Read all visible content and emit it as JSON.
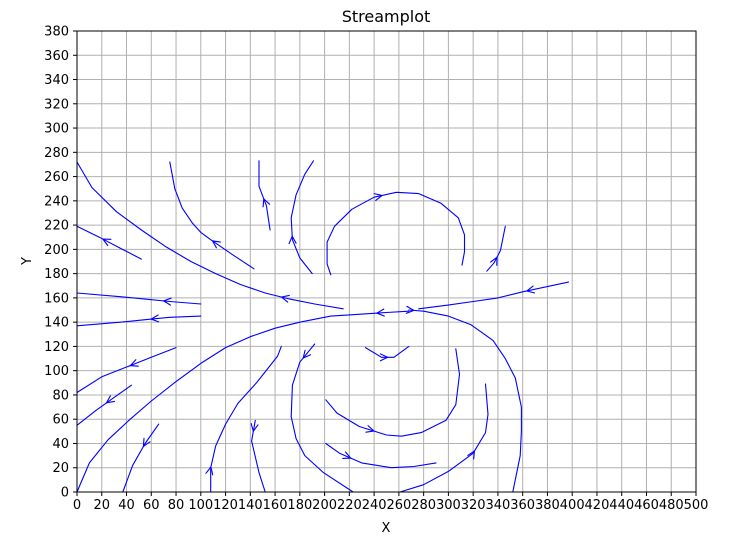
{
  "chart_data": {
    "type": "streamplot",
    "title": "Streamplot",
    "xlabel": "X",
    "ylabel": "Y",
    "xlim": [
      0,
      500
    ],
    "ylim": [
      0,
      380
    ],
    "xticks": [
      0,
      20,
      40,
      60,
      80,
      100,
      120,
      140,
      160,
      180,
      200,
      220,
      240,
      260,
      280,
      300,
      320,
      340,
      360,
      380,
      400,
      420,
      440,
      460,
      480,
      500
    ],
    "yticks": [
      0,
      20,
      40,
      60,
      80,
      100,
      120,
      140,
      160,
      180,
      200,
      220,
      240,
      260,
      280,
      300,
      320,
      340,
      360,
      380
    ],
    "grid": true,
    "line_color": "#0000ff",
    "streamlines": [
      {
        "points": [
          [
            52,
            192
          ],
          [
            35,
            201
          ],
          [
            18,
            210
          ],
          [
            0,
            219
          ]
        ],
        "arrow": 0.6
      },
      {
        "points": [
          [
            143,
            184
          ],
          [
            125,
            196
          ],
          [
            108,
            208
          ],
          [
            100,
            214
          ],
          [
            93,
            222
          ],
          [
            85,
            234
          ],
          [
            79,
            250
          ],
          [
            75,
            272
          ]
        ],
        "arrow": 0.35
      },
      {
        "points": [
          [
            215,
            151
          ],
          [
            192,
            155
          ],
          [
            172,
            159
          ],
          [
            152,
            164
          ],
          [
            132,
            171
          ],
          [
            112,
            180
          ],
          [
            92,
            190
          ],
          [
            72,
            202
          ],
          [
            52,
            216
          ],
          [
            32,
            231
          ],
          [
            12,
            251
          ],
          [
            0,
            272
          ]
        ],
        "arrow": 0.2
      },
      {
        "points": [
          [
            100,
            155
          ],
          [
            75,
            157
          ],
          [
            55,
            159
          ],
          [
            35,
            161
          ],
          [
            0,
            164
          ]
        ],
        "arrow": 0.3
      },
      {
        "points": [
          [
            100,
            145
          ],
          [
            75,
            144
          ],
          [
            55,
            142
          ],
          [
            35,
            140
          ],
          [
            0,
            137
          ]
        ],
        "arrow": 0.4
      },
      {
        "points": [
          [
            80,
            119
          ],
          [
            60,
            111
          ],
          [
            45,
            105
          ],
          [
            20,
            95
          ],
          [
            0,
            82
          ]
        ],
        "arrow": 0.45
      },
      {
        "points": [
          [
            44,
            88
          ],
          [
            30,
            78
          ],
          [
            15,
            67
          ],
          [
            0,
            55
          ]
        ],
        "arrow": 0.45
      },
      {
        "points": [
          [
            66,
            56
          ],
          [
            55,
            40
          ],
          [
            45,
            22
          ],
          [
            37,
            0
          ]
        ],
        "arrow": 0.35
      },
      {
        "points": [
          [
            156,
            216
          ],
          [
            153,
            236
          ],
          [
            147,
            252
          ],
          [
            147,
            273
          ]
        ],
        "arrow": 0.45
      },
      {
        "points": [
          [
            190,
            180
          ],
          [
            180,
            193
          ],
          [
            174,
            208
          ],
          [
            173,
            226
          ],
          [
            177,
            245
          ],
          [
            184,
            262
          ],
          [
            191,
            273
          ]
        ],
        "arrow": 0.35
      },
      {
        "points": [
          [
            331,
            182
          ],
          [
            337,
            189
          ],
          [
            342,
            199
          ],
          [
            346,
            219
          ]
        ],
        "arrow": 0.35
      },
      {
        "points": [
          [
            205,
            179
          ],
          [
            202,
            188
          ],
          [
            202,
            206
          ],
          [
            208,
            219
          ],
          [
            222,
            233
          ],
          [
            240,
            243
          ],
          [
            258,
            247
          ],
          [
            276,
            246
          ],
          [
            294,
            238
          ],
          [
            308,
            226
          ],
          [
            313,
            212
          ],
          [
            313,
            198
          ],
          [
            311,
            187
          ]
        ],
        "arrow": 0.45
      },
      {
        "points": [
          [
            397,
            173
          ],
          [
            360,
            165
          ],
          [
            340,
            160
          ],
          [
            320,
            157
          ],
          [
            299,
            154
          ],
          [
            276,
            151
          ]
        ],
        "arrow": 0.28
      },
      {
        "points": [
          [
            268,
            149
          ],
          [
            250,
            148
          ],
          [
            235,
            147
          ],
          [
            220,
            146
          ],
          [
            205,
            145
          ],
          [
            180,
            140
          ],
          [
            160,
            135
          ],
          [
            140,
            128
          ],
          [
            120,
            119
          ],
          [
            100,
            106
          ],
          [
            80,
            91
          ],
          [
            60,
            75
          ],
          [
            43,
            60
          ],
          [
            25,
            43
          ],
          [
            10,
            24
          ],
          [
            0,
            0
          ]
        ],
        "arrow": 0.08
      },
      {
        "points": [
          [
            108,
            0
          ],
          [
            108,
            20
          ],
          [
            112,
            38
          ],
          [
            120,
            56
          ],
          [
            130,
            73
          ],
          [
            145,
            90
          ],
          [
            162,
            112
          ],
          [
            165,
            120
          ]
        ],
        "arrow": 0.15
      },
      {
        "points": [
          [
            144,
            59
          ],
          [
            141,
            42
          ],
          [
            147,
            16
          ],
          [
            152,
            0
          ]
        ],
        "arrow": 0.15
      },
      {
        "points": [
          [
            192,
            122
          ],
          [
            180,
            107
          ],
          [
            174,
            88
          ],
          [
            173,
            62
          ],
          [
            177,
            44
          ],
          [
            184,
            30
          ],
          [
            199,
            16
          ],
          [
            223,
            0
          ]
        ],
        "arrow": 0.1
      },
      {
        "points": [
          [
            233,
            119
          ],
          [
            246,
            111
          ],
          [
            256,
            111
          ],
          [
            268,
            120
          ]
        ],
        "arrow": 0.5
      },
      {
        "points": [
          [
            201,
            76
          ],
          [
            210,
            65
          ],
          [
            228,
            54
          ],
          [
            250,
            47
          ],
          [
            262,
            46
          ],
          [
            278,
            49
          ],
          [
            298,
            59
          ],
          [
            306,
            72
          ],
          [
            309,
            97
          ],
          [
            306,
            118
          ]
        ],
        "arrow": 0.28
      },
      {
        "points": [
          [
            201,
            40
          ],
          [
            212,
            32
          ],
          [
            230,
            24
          ],
          [
            254,
            20
          ],
          [
            272,
            21
          ],
          [
            290,
            24
          ]
        ],
        "arrow": 0.25
      },
      {
        "points": [
          [
            261,
            0
          ],
          [
            280,
            6
          ],
          [
            300,
            17
          ],
          [
            320,
            32
          ],
          [
            330,
            49
          ],
          [
            332,
            64
          ],
          [
            330,
            89
          ]
        ],
        "arrow": 0.55
      },
      {
        "points": [
          [
            268,
            150
          ],
          [
            280,
            149
          ],
          [
            300,
            145
          ],
          [
            318,
            138
          ],
          [
            336,
            125
          ],
          [
            346,
            110
          ],
          [
            354,
            94
          ],
          [
            359,
            70
          ],
          [
            359,
            50
          ],
          [
            358,
            30
          ],
          [
            352,
            0
          ]
        ],
        "arrow": 0.0
      }
    ]
  }
}
